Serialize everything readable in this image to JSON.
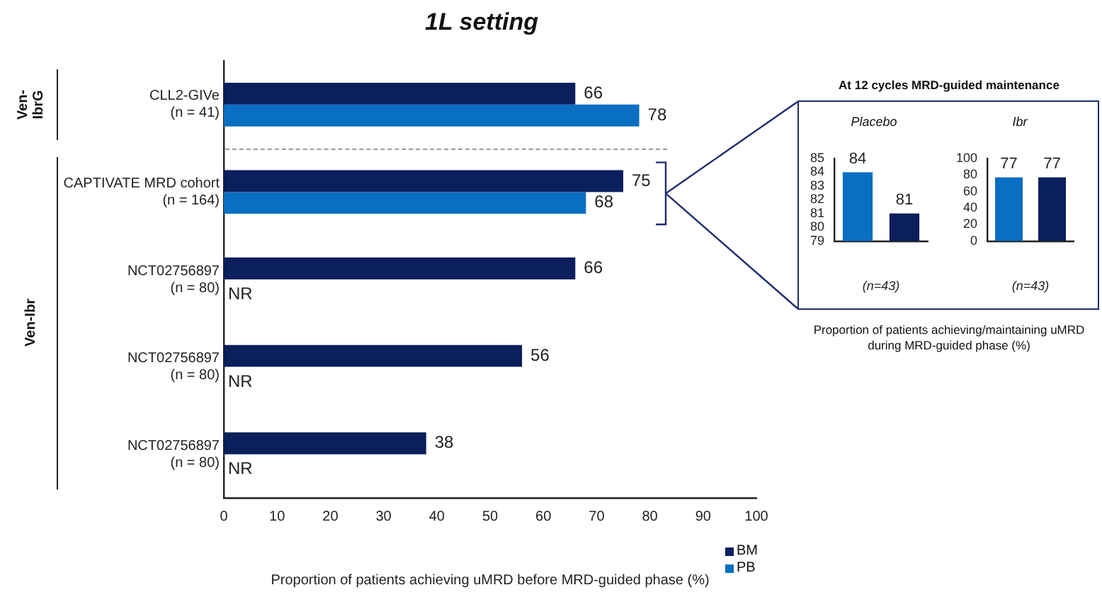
{
  "chart_data": [
    {
      "type": "bar",
      "title": "1L setting",
      "orientation": "horizontal",
      "xlabel": "Proportion of patients achieving uMRD before MRD-guided phase (%)",
      "categories": [
        "CLL2-GIVe\n(n = 41)",
        "CAPTIVATE MRD cohort\n(n = 164)",
        "NCT02756897\n(n = 80)",
        "NCT02756897\n(n = 80)",
        "NCT02756897\n(n = 80)"
      ],
      "series": [
        {
          "name": "BM",
          "color": "#0b1f5c",
          "values": [
            66,
            75,
            66,
            56,
            38
          ],
          "value_labels": [
            "66",
            "75",
            "66",
            "56",
            "38"
          ]
        },
        {
          "name": "PB",
          "color": "#0a6fc2",
          "values": [
            78,
            68,
            null,
            null,
            null
          ],
          "value_labels": [
            "78",
            "68",
            "NR",
            "NR",
            "NR"
          ]
        }
      ],
      "xlim": [
        0,
        100
      ],
      "xticks": [
        0,
        10,
        20,
        30,
        40,
        50,
        60,
        70,
        80,
        90,
        100
      ],
      "grid": false,
      "legend": "bottom right",
      "annotations": [
        "Ven-\nIbrG",
        "Ven-Ibr"
      ]
    },
    {
      "type": "bar",
      "title": "Placebo",
      "xlabel": "(n=43)",
      "categories": [
        null,
        null
      ],
      "values": [
        84,
        81
      ],
      "colors": [
        "#0a6fc2",
        "#0b1f5c"
      ],
      "ylim": [
        79,
        85
      ],
      "yticks": [
        79,
        80,
        81,
        82,
        83,
        84,
        85
      ],
      "grid": false,
      "data_labels": true,
      "annotations": [
        "At 12 cycles MRD-guided maintenance",
        "Proportion of patients achieving/maintaining uMRD\nduring MRD-guided phase (%)"
      ]
    },
    {
      "type": "bar",
      "title": "Ibr",
      "xlabel": "(n=43)",
      "categories": [
        null,
        null
      ],
      "values": [
        77,
        77
      ],
      "colors": [
        "#0a6fc2",
        "#0b1f5c"
      ],
      "ylim": [
        0,
        100
      ],
      "yticks": [
        0,
        20,
        40,
        60,
        80,
        100
      ],
      "grid": false,
      "data_labels": true
    }
  ]
}
